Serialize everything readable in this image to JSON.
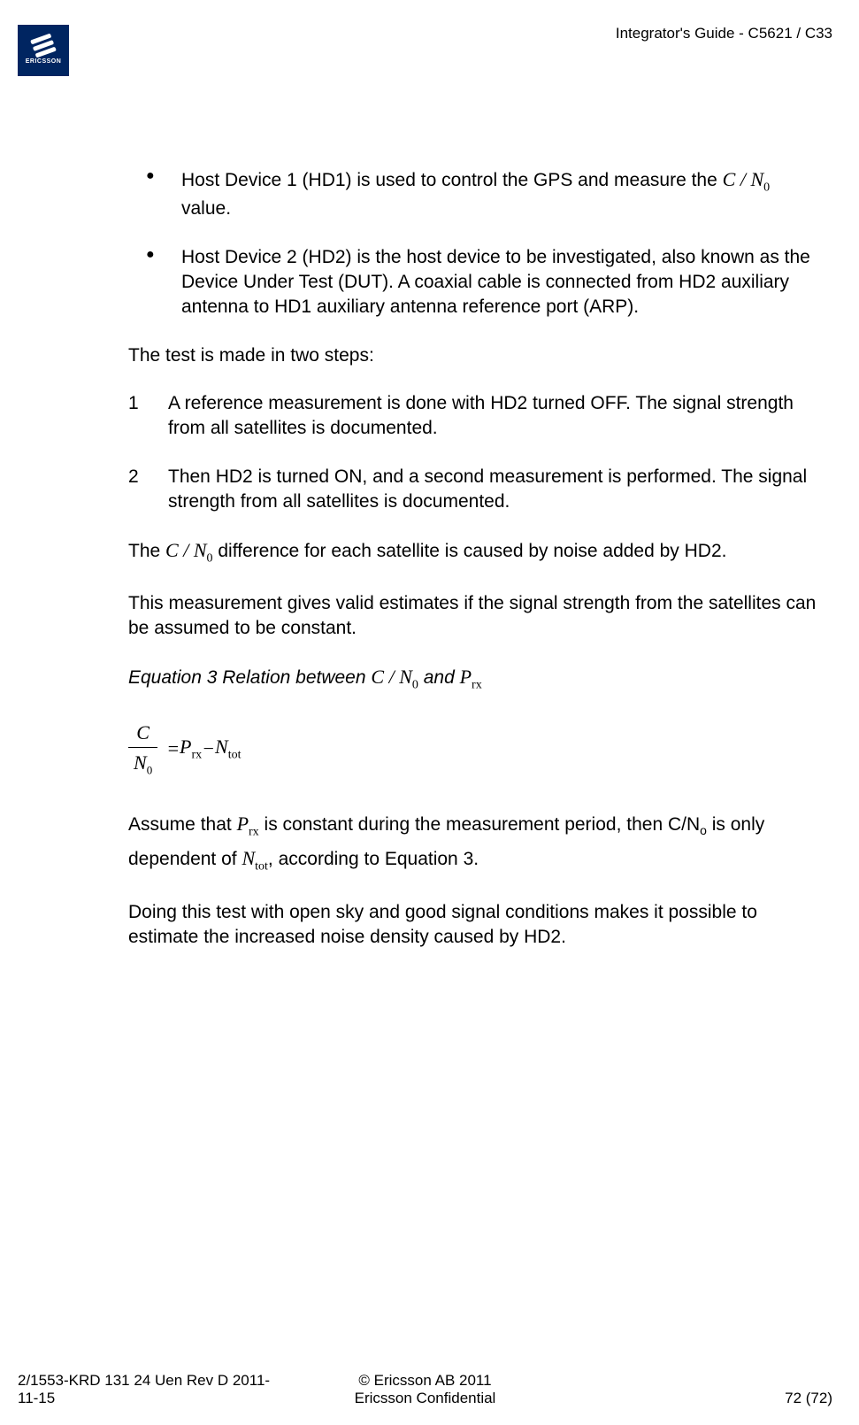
{
  "header": {
    "title": "Integrator's Guide - C5621 / C33"
  },
  "logo": {
    "brand": "ERICSSON"
  },
  "content": {
    "bullet1_part1": "Host Device 1 (HD1) is used to control the GPS and measure the ",
    "bullet1_part2": " value.",
    "bullet2": "Host Device 2 (HD2) is the host device to be investigated, also known as the Device Under Test (DUT). A coaxial cable is connected from HD2 auxiliary antenna to HD1 auxiliary antenna reference port (ARP).",
    "para1": "The test is made in two steps:",
    "num1": "A reference measurement is done with HD2 turned OFF. The signal strength from all satellites is documented.",
    "num2": "Then HD2 is turned ON, and a second measurement is performed. The signal strength from all satellites is documented.",
    "para2_part1": "The ",
    "para2_part2": " difference for each satellite is caused by noise added by HD2.",
    "para3": "This measurement gives valid estimates if the signal strength from the satellites can be assumed to be constant.",
    "eq_caption_part1": "Equation 3  Relation between ",
    "eq_caption_part2": " and ",
    "para4_part1": "Assume that ",
    "para4_part2": " is constant during the measurement period, then C/N",
    "para4_part3": " is only dependent of ",
    "para4_part4": ", according to Equation 3.",
    "para5": "Doing this test with open sky and good signal conditions makes it possible to estimate the increased noise density caused by HD2.",
    "math": {
      "C": "C",
      "slash": " / ",
      "N": "N",
      "zero": "0",
      "P": "P",
      "rx": "rx",
      "tot": "tot",
      "eq": " = ",
      "minus": " − ",
      "o": "o"
    },
    "markers": {
      "n1": "1",
      "n2": "2"
    }
  },
  "footer": {
    "left": "2/1553-KRD 131 24 Uen  Rev D    2011-11-15",
    "center1": "© Ericsson AB 2011",
    "center2": "Ericsson Confidential",
    "right": "72 (72)"
  }
}
